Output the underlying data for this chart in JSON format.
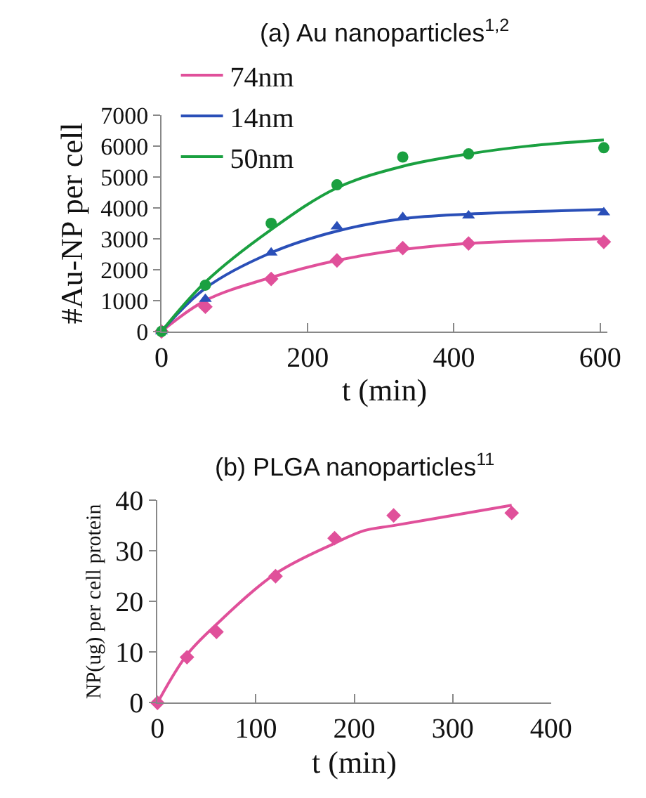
{
  "chart_data": [
    {
      "type": "line",
      "title": "(a) Au nanoparticles$^{1,2}$",
      "xlabel": "t (min)",
      "ylabel": "#Au-NP per cell",
      "xlim": [
        0,
        610
      ],
      "xticks": [
        0,
        200,
        400,
        600
      ],
      "ylim": [
        0,
        7000
      ],
      "yticks": [
        0,
        1000,
        2000,
        3000,
        4000,
        5000,
        6000,
        7000
      ],
      "legend": "top left",
      "series": [
        {
          "name": "74nm",
          "color": "#e0509a",
          "type": "line",
          "x": [
            0,
            60,
            150,
            240,
            330,
            420,
            605
          ],
          "values": [
            0,
            1000,
            1750,
            2300,
            2650,
            2850,
            3000
          ]
        },
        {
          "name": "14nm",
          "color": "#2a4fb8",
          "type": "line",
          "x": [
            0,
            60,
            150,
            240,
            330,
            420,
            605
          ],
          "values": [
            0,
            1400,
            2550,
            3250,
            3650,
            3800,
            3950
          ]
        },
        {
          "name": "50nm",
          "color": "#1aa040",
          "type": "line",
          "x": [
            0,
            60,
            150,
            240,
            330,
            420,
            500,
            605
          ],
          "values": [
            0,
            1600,
            3300,
            4650,
            5350,
            5750,
            6000,
            6200
          ]
        },
        {
          "color": "#e0509a",
          "type": "scatter",
          "marker": "diamond",
          "x": [
            0,
            60,
            150,
            240,
            330,
            420,
            605
          ],
          "values": [
            0,
            800,
            1700,
            2300,
            2700,
            2850,
            2900
          ]
        },
        {
          "color": "#2a4fb8",
          "type": "scatter",
          "marker": "triangle",
          "x": [
            0,
            60,
            150,
            240,
            330,
            420,
            605
          ],
          "values": [
            0,
            1050,
            2550,
            3400,
            3700,
            3750,
            3850
          ]
        },
        {
          "color": "#1aa040",
          "type": "scatter",
          "marker": "circle",
          "x": [
            0,
            60,
            150,
            240,
            330,
            420,
            605
          ],
          "values": [
            0,
            1500,
            3500,
            4750,
            5650,
            5750,
            5950
          ]
        }
      ]
    },
    {
      "type": "line",
      "title": "(b) PLGA nanoparticles$^{11}$",
      "xlabel": "t (min)",
      "ylabel": "NP(ug) per cell protein",
      "xlim": [
        0,
        400
      ],
      "xticks": [
        0,
        100,
        200,
        300,
        400
      ],
      "ylim": [
        0,
        40
      ],
      "yticks": [
        0,
        10,
        20,
        30,
        40
      ],
      "legend": false,
      "series": [
        {
          "color": "#e0509a",
          "type": "line",
          "x": [
            0,
            30,
            60,
            120,
            180,
            210,
            240,
            300,
            360
          ],
          "values": [
            0,
            9.5,
            15.5,
            25.5,
            31.5,
            34,
            35,
            37,
            39
          ]
        },
        {
          "color": "#e0509a",
          "type": "scatter",
          "marker": "diamond",
          "x": [
            0,
            30,
            60,
            120,
            180,
            240,
            360
          ],
          "values": [
            0,
            9,
            14,
            25,
            32.5,
            37,
            37.5
          ]
        }
      ]
    }
  ]
}
